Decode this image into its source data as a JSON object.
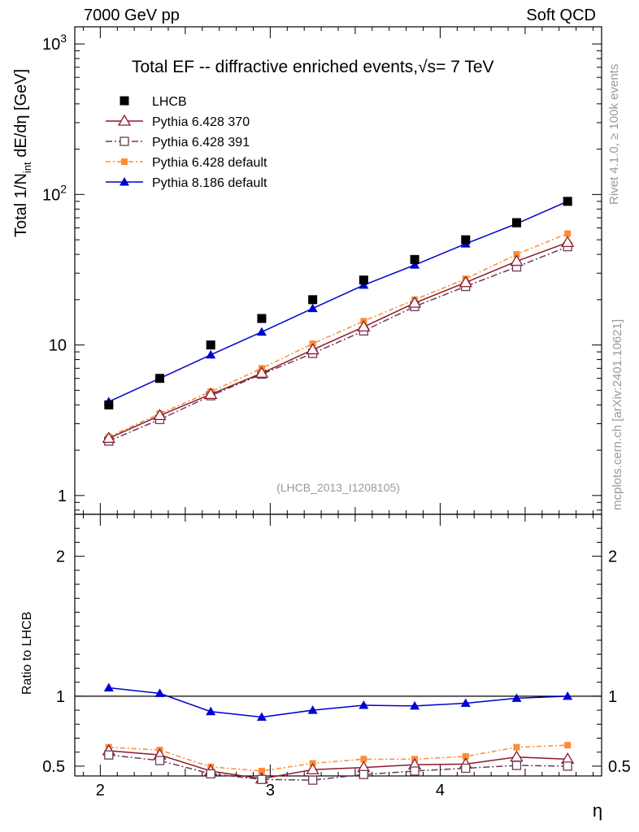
{
  "header": {
    "left": "7000 GeV pp",
    "right": "Soft QCD"
  },
  "side_text": {
    "rivet": "Rivet 4.1.0, ≥ 100k events",
    "mcplots": "mcplots.cern.ch [arXiv:2401.10621]"
  },
  "colors": {
    "LHCB": "#000000",
    "Pythia 6.428 370": "#8b1a2b",
    "Pythia 6.428 391": "#6b3a55",
    "Pythia 6.428 default": "#ff8c33",
    "Pythia 8.186 default": "#0000d0"
  },
  "chart_data": [
    {
      "type": "scatter",
      "panel": "main",
      "title": "Total EF -- diffractive enriched events, √s= 7 TeV",
      "title_main": "Total EF -- diffractive enriched events,",
      "title_sqrt": "√s",
      "title_energy": "= 7 TeV",
      "ylabel_main": "Total 1/N",
      "ylabel_sub": "int",
      "ylabel_tail": " dE/dη [GeV]",
      "yscale": "log",
      "ylim": [
        0.75,
        1300
      ],
      "xlim": [
        1.85,
        4.95
      ],
      "yticks": [
        {
          "value": 1,
          "base": "1",
          "exp": ""
        },
        {
          "value": 10,
          "base": "10",
          "exp": ""
        },
        {
          "value": 100,
          "base": "10",
          "exp": "2"
        },
        {
          "value": 1000,
          "base": "10",
          "exp": "3"
        }
      ],
      "watermark": "(LHCB_2013_I1208105)",
      "legend_position": "top-left",
      "x": [
        2.05,
        2.35,
        2.65,
        2.95,
        3.25,
        3.55,
        3.85,
        4.15,
        4.45,
        4.75
      ],
      "series": [
        {
          "name": "LHCB",
          "style": "data",
          "values": [
            4.0,
            6.0,
            10.0,
            15.0,
            20.0,
            27.0,
            37.0,
            50.0,
            65.0,
            90.0
          ]
        },
        {
          "name": "Pythia 6.428 370",
          "style": "tri-open",
          "values": [
            2.4,
            3.4,
            4.7,
            6.5,
            9.3,
            13.2,
            19.0,
            26.0,
            36.0,
            48.0
          ]
        },
        {
          "name": "Pythia 6.428 391",
          "style": "sq-open",
          "values": [
            2.3,
            3.2,
            4.6,
            6.4,
            8.8,
            12.4,
            18.0,
            24.5,
            33.0,
            45.0
          ]
        },
        {
          "name": "Pythia 6.428 default",
          "style": "sq-filled",
          "values": [
            2.45,
            3.5,
            4.9,
            7.0,
            10.2,
            14.4,
            20.0,
            27.5,
            40.0,
            55.0
          ]
        },
        {
          "name": "Pythia 8.186 default",
          "style": "tri-filled",
          "values": [
            4.2,
            6.0,
            8.6,
            12.2,
            17.5,
            25.0,
            34.0,
            47.0,
            64.0,
            90.0
          ]
        }
      ]
    },
    {
      "type": "line",
      "panel": "ratio",
      "ylabel": "Ratio to LHCB",
      "xlabel": "η",
      "ylim": [
        0.43,
        2.3
      ],
      "xlim": [
        1.85,
        4.95
      ],
      "yticks": [
        0.5,
        1,
        2
      ],
      "ytick_labels": [
        "0.5",
        "1",
        "2"
      ],
      "xticks": [
        2,
        3,
        4
      ],
      "xtick_labels": [
        "2",
        "3",
        "4"
      ],
      "reference": 1.0,
      "x": [
        2.05,
        2.35,
        2.65,
        2.95,
        3.25,
        3.55,
        3.85,
        4.15,
        4.45,
        4.75
      ],
      "series": [
        {
          "name": "Pythia 8.186 default",
          "style": "tri-filled",
          "values": [
            1.06,
            1.02,
            0.89,
            0.85,
            0.9,
            0.935,
            0.93,
            0.95,
            0.985,
            1.0
          ]
        },
        {
          "name": "Pythia 6.428 default",
          "style": "sq-filled",
          "values": [
            0.635,
            0.615,
            0.495,
            0.465,
            0.52,
            0.55,
            0.55,
            0.57,
            0.635,
            0.65
          ]
        },
        {
          "name": "Pythia 6.428 370",
          "style": "tri-open",
          "values": [
            0.61,
            0.58,
            0.465,
            0.41,
            0.475,
            0.49,
            0.51,
            0.515,
            0.565,
            0.55
          ]
        },
        {
          "name": "Pythia 6.428 391",
          "style": "sq-open",
          "values": [
            0.58,
            0.54,
            0.445,
            0.405,
            0.4,
            0.44,
            0.465,
            0.485,
            0.505,
            0.5
          ]
        }
      ]
    }
  ]
}
